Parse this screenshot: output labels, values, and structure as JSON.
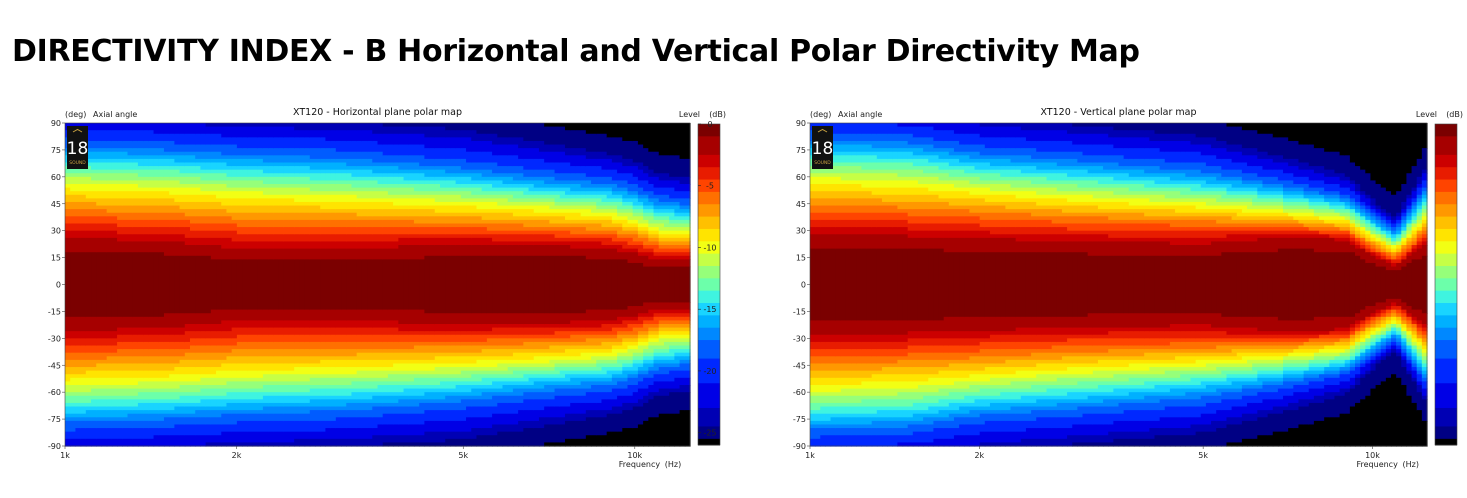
{
  "page": {
    "title": "DIRECTIVITY INDEX - B Horizontal and Vertical Polar Directivity Map"
  },
  "chart_data": [
    {
      "type": "heatmap",
      "title": "XT120 - Horizontal plane polar map",
      "y_unit_label": "(deg)",
      "y_title": "Axial angle",
      "x_title": "Frequency",
      "x_unit_label": "(Hz)",
      "colorbar_title": "Level",
      "colorbar_unit_label": "(dB)",
      "logo_text": "18",
      "logo_subtext": "SOUND",
      "x_scale": "log",
      "xlim": [
        1000,
        12500
      ],
      "ylim": [
        -90,
        90
      ],
      "x_ticks": [
        {
          "value": 1000,
          "label": "1k"
        },
        {
          "value": 2000,
          "label": "2k"
        },
        {
          "value": 5000,
          "label": "5k"
        },
        {
          "value": 10000,
          "label": "10k"
        }
      ],
      "y_ticks": [
        90,
        75,
        60,
        45,
        30,
        15,
        0,
        -15,
        -30,
        -45,
        -60,
        -75,
        -90
      ],
      "colorbar_ticks": [
        0,
        -5,
        -10,
        -15,
        -20,
        -25
      ],
      "colorbar_range": [
        -26,
        0
      ],
      "contour_angles_deg": {
        "x": [
          1000,
          1500,
          2000,
          3000,
          5000,
          7000,
          9000,
          10000,
          11000,
          12500
        ],
        "level_-2": [
          24,
          22,
          18,
          18,
          20,
          20,
          19,
          16,
          12,
          12
        ],
        "level_-4": [
          32,
          30,
          27,
          27,
          27,
          26,
          24,
          21,
          17,
          17
        ],
        "level_-6": [
          40,
          38,
          35,
          34,
          33,
          31,
          29,
          26,
          22,
          21
        ],
        "level_-10": [
          55,
          53,
          50,
          48,
          45,
          42,
          39,
          35,
          30,
          29
        ],
        "level_-15": [
          70,
          68,
          65,
          63,
          58,
          53,
          50,
          46,
          41,
          39
        ],
        "level_-20": [
          84,
          82,
          80,
          78,
          72,
          66,
          62,
          58,
          52,
          50
        ],
        "level_-25": [
          98,
          96,
          93,
          92,
          88,
          80,
          74,
          70,
          63,
          60
        ]
      }
    },
    {
      "type": "heatmap",
      "title": "XT120 - Vertical plane polar map",
      "y_unit_label": "(deg)",
      "y_title": "Axial angle",
      "x_title": "Frequency",
      "x_unit_label": "(Hz)",
      "colorbar_title": "Level",
      "colorbar_unit_label": "(dB)",
      "logo_text": "18",
      "logo_subtext": "SOUND",
      "x_scale": "log",
      "xlim": [
        1000,
        12500
      ],
      "ylim": [
        -90,
        90
      ],
      "x_ticks": [
        {
          "value": 1000,
          "label": "1k"
        },
        {
          "value": 2000,
          "label": "2k"
        },
        {
          "value": 5000,
          "label": "5k"
        },
        {
          "value": 10000,
          "label": "10k"
        }
      ],
      "y_ticks": [
        90,
        75,
        60,
        45,
        30,
        15,
        0,
        -15,
        -30,
        -45,
        -60,
        -75,
        -90
      ],
      "contour_angles_deg": {
        "x": [
          1000,
          1500,
          2000,
          3000,
          5000,
          7000,
          9000,
          10000,
          11000,
          12500
        ],
        "level_-2": [
          26,
          25,
          24,
          22,
          21,
          25,
          24,
          15,
          10,
          22
        ],
        "level_-4": [
          34,
          33,
          31,
          29,
          28,
          30,
          27,
          18,
          12,
          26
        ],
        "level_-6": [
          42,
          41,
          39,
          36,
          34,
          33,
          30,
          21,
          15,
          30
        ],
        "level_-10": [
          58,
          56,
          52,
          48,
          44,
          40,
          36,
          27,
          20,
          38
        ],
        "level_-15": [
          74,
          72,
          66,
          62,
          56,
          50,
          44,
          34,
          26,
          48
        ],
        "level_-20": [
          88,
          86,
          80,
          76,
          70,
          60,
          52,
          41,
          32,
          58
        ],
        "level_-25": [
          102,
          100,
          95,
          90,
          84,
          72,
          62,
          48,
          38,
          68
        ]
      }
    }
  ]
}
